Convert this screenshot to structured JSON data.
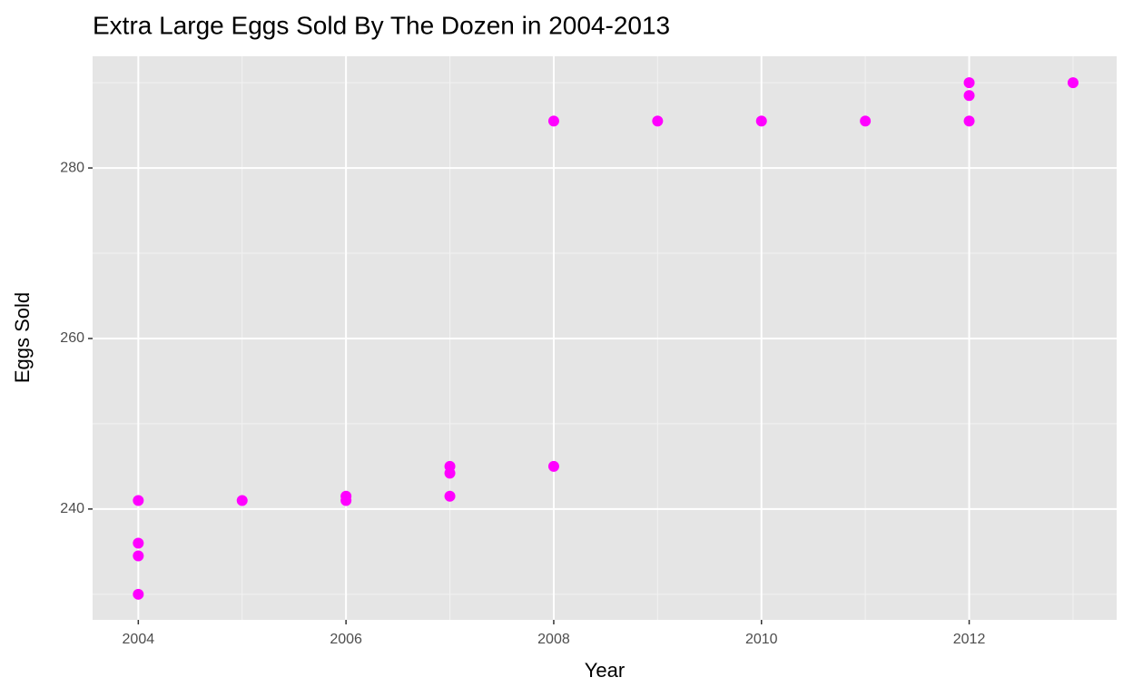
{
  "chart_data": {
    "type": "scatter",
    "title": "Extra Large Eggs Sold By The Dozen in 2004-2013",
    "x_label": "Year",
    "y_label": "Eggs Sold",
    "x": [
      2004,
      2004,
      2004,
      2004,
      2005,
      2006,
      2006,
      2007,
      2007,
      2007,
      2008,
      2008,
      2009,
      2010,
      2011,
      2012,
      2012,
      2012,
      2013
    ],
    "values": [
      241,
      236,
      234.5,
      230,
      241,
      241.5,
      241,
      245,
      244.2,
      241.5,
      285.5,
      245,
      285.5,
      285.5,
      285.5,
      290,
      288.5,
      285.5,
      290
    ],
    "color": "#ff00ff",
    "xlim": [
      2003.56,
      2013.42
    ],
    "xticks": [
      2004,
      2006,
      2008,
      2010,
      2012
    ],
    "ylim": [
      227,
      293.1
    ],
    "yticks": [
      240,
      260,
      280
    ],
    "grid": true
  }
}
